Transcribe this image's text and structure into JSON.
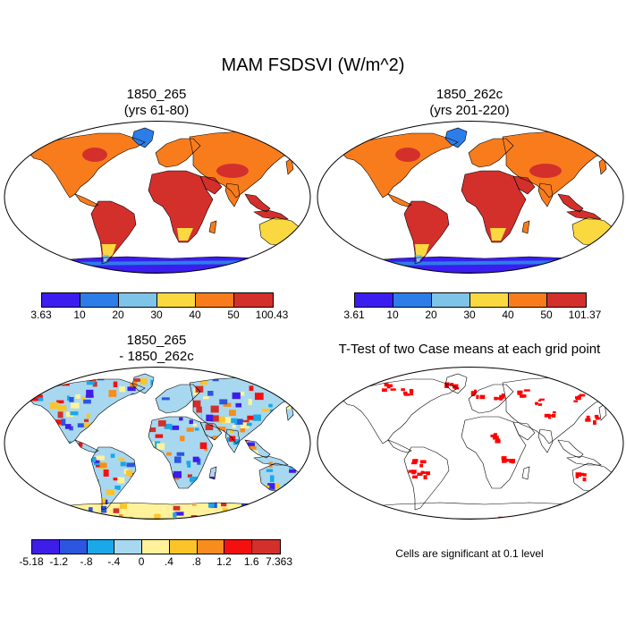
{
  "title": "MAM FSDSVI (W/m^2)",
  "panels": [
    {
      "title_line1": "1850_265",
      "title_line2": "(yrs 61-80)"
    },
    {
      "title_line1": "1850_262c",
      "title_line2": "(yrs 201-220)"
    },
    {
      "title_line1": "1850_265",
      "title_line2": "- 1850_262c"
    },
    {
      "title_line1": "T-Test of two Case means at each grid point",
      "title_line2": ""
    }
  ],
  "colorbars": {
    "case1": {
      "colors": [
        "#3c1df0",
        "#2c7de8",
        "#7ec3e8",
        "#fad840",
        "#f87c1c",
        "#d3302c"
      ],
      "labels": [
        "3.63",
        "10",
        "20",
        "30",
        "40",
        "50",
        "100.43"
      ]
    },
    "case2": {
      "colors": [
        "#3c1df0",
        "#2c7de8",
        "#7ec3e8",
        "#fad840",
        "#f87c1c",
        "#d3302c"
      ],
      "labels": [
        "3.61",
        "10",
        "20",
        "30",
        "40",
        "50",
        "101.37"
      ]
    },
    "diff": {
      "colors": [
        "#3f1de8",
        "#2c55e0",
        "#1aa8e8",
        "#a8d8f0",
        "#fff29a",
        "#fcc428",
        "#f88c1c",
        "#f51010",
        "#d3302c"
      ],
      "labels": [
        "-5.18",
        "-1.2",
        "-.8",
        "-.4",
        "0",
        ".4",
        ".8",
        "1.2",
        "1.6",
        "7.363"
      ]
    }
  },
  "ttest_note": "Cells are significant at 0.1 level",
  "colors": {
    "significant": "#ff0000",
    "ocean": "#ffffff",
    "coast": "#000000"
  }
}
